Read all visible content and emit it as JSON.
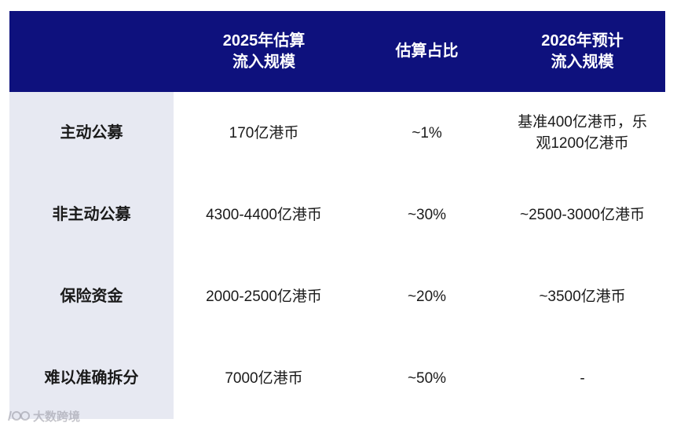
{
  "table": {
    "headers": [
      "",
      "2025年估算\n流入规模",
      "估算占比",
      "2026年预计\n流入规模"
    ],
    "rows": [
      {
        "label": "主动公募",
        "flow_2025": "170亿港币",
        "share": "~1%",
        "flow_2026": "基准400亿港币，乐\n观1200亿港币"
      },
      {
        "label": "非主动公募",
        "flow_2025": "4300-4400亿港币",
        "share": "~30%",
        "flow_2026": "~2500-3000亿港币"
      },
      {
        "label": "保险资金",
        "flow_2025": "2000-2500亿港币",
        "share": "~20%",
        "flow_2026": "~3500亿港币"
      },
      {
        "label": "难以准确拆分",
        "flow_2025": "7000亿港币",
        "share": "~50%",
        "flow_2026": "-"
      }
    ]
  },
  "watermark": {
    "text": "大数跨境",
    "icon": "brand-logo-icon"
  },
  "colors": {
    "header_bg": "#0e117d",
    "label_band_bg": "#e7e9f2",
    "header_text": "#ffffff"
  }
}
